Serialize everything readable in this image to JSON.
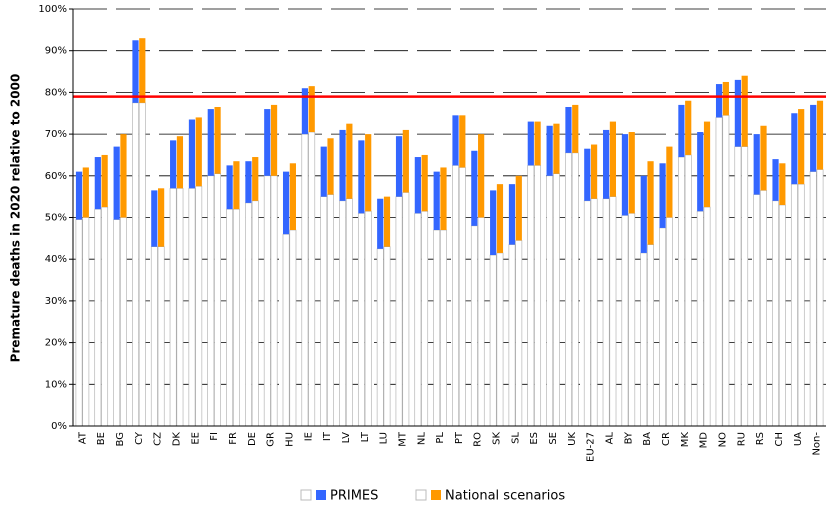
{
  "chart_data": {
    "type": "floating-bar",
    "y_label": "Premature deaths in 2020 relative to 2000",
    "categories": [
      "AT",
      "BE",
      "BG",
      "CY",
      "CZ",
      "DK",
      "EE",
      "FI",
      "FR",
      "DE",
      "GR",
      "HU",
      "IE",
      "IT",
      "LV",
      "LT",
      "LU",
      "MT",
      "NL",
      "PL",
      "PT",
      "RO",
      "SK",
      "SL",
      "ES",
      "SE",
      "UK",
      "EU-27",
      "AL",
      "BY",
      "BA",
      "CR",
      "MK",
      "MD",
      "NO",
      "RU",
      "RS",
      "CH",
      "UA",
      "Non-"
    ],
    "series": [
      {
        "name": "PRIMES",
        "color": "#3366ff",
        "low": [
          49.5,
          52,
          49.5,
          77.5,
          43,
          57,
          57,
          60,
          52,
          53.5,
          60,
          46,
          70,
          55,
          54,
          51,
          42.5,
          55,
          51,
          47,
          62.5,
          48,
          41,
          43.5,
          62.5,
          60,
          65.5,
          54,
          54.5,
          50.5,
          41.5,
          47.5,
          64.5,
          51.5,
          74,
          67,
          55.5,
          54,
          58,
          61
        ],
        "values": [
          61,
          64.5,
          67,
          92.5,
          56.5,
          68.5,
          73.5,
          76,
          62.5,
          63.5,
          76,
          61,
          81,
          67,
          71,
          68.5,
          54.5,
          69.5,
          64.5,
          61,
          74.5,
          66,
          56.5,
          58,
          73,
          72,
          76.5,
          66.5,
          71,
          70,
          60,
          63,
          77,
          70.5,
          82,
          83,
          70,
          64,
          75,
          77
        ]
      },
      {
        "name": "National scenarios",
        "color": "#ff9900",
        "low": [
          50,
          52.5,
          50,
          77.5,
          43,
          57,
          57.5,
          60.5,
          52,
          54,
          60,
          47,
          70.5,
          55.5,
          54.5,
          51.5,
          43,
          56,
          51.5,
          47,
          62,
          50,
          41.5,
          44.5,
          62.5,
          60.5,
          65.5,
          54.5,
          55,
          51,
          43.5,
          50,
          65,
          52.5,
          74.5,
          67,
          56.5,
          53,
          58,
          61.5
        ],
        "values": [
          62,
          65,
          70,
          93,
          57,
          69.5,
          74,
          76.5,
          63.5,
          64.5,
          77,
          63,
          81.5,
          69,
          72.5,
          70,
          55,
          71,
          65,
          62,
          74.5,
          70,
          58,
          60,
          73,
          72.5,
          77,
          67.5,
          73,
          70.5,
          63.5,
          67,
          78,
          73,
          82.5,
          84,
          72,
          63,
          76,
          78
        ]
      }
    ],
    "reference_line": 79,
    "reference_color": "#ff0000",
    "ylim": [
      0,
      100
    ],
    "yticks": [
      {
        "value": 0,
        "label": "0%"
      },
      {
        "value": 10,
        "label": "10%"
      },
      {
        "value": 20,
        "label": "20%"
      },
      {
        "value": 30,
        "label": "30%"
      },
      {
        "value": 40,
        "label": "40%"
      },
      {
        "value": 50,
        "label": "50%"
      },
      {
        "value": 60,
        "label": "60%"
      },
      {
        "value": 70,
        "label": "70%"
      },
      {
        "value": 80,
        "label": "80%"
      },
      {
        "value": 90,
        "label": "90%"
      },
      {
        "value": 100,
        "label": "100%"
      }
    ],
    "grid": true
  }
}
